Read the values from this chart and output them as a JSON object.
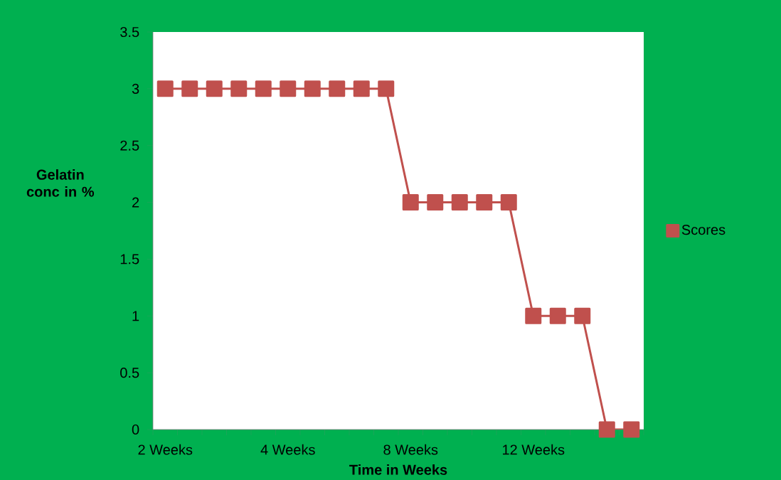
{
  "chart_data": {
    "type": "line",
    "xlabel": "Time in Weeks",
    "ylabel": "Gelatin conc in %",
    "categories": [
      "2 Weeks",
      null,
      null,
      null,
      null,
      "4 Weeks",
      null,
      null,
      null,
      null,
      "8 Weeks",
      null,
      null,
      null,
      null,
      "12 Weeks",
      null,
      null,
      null,
      null
    ],
    "series": [
      {
        "name": "Scores",
        "color": "#c0504d",
        "values": [
          3,
          3,
          3,
          3,
          3,
          3,
          3,
          3,
          3,
          3,
          2,
          2,
          2,
          2,
          2,
          1,
          1,
          1,
          0,
          0
        ]
      }
    ],
    "ylim": [
      0,
      3.5
    ],
    "yticks": [
      0,
      0.5,
      1,
      1.5,
      2,
      2.5,
      3,
      3.5
    ],
    "legend": "right",
    "marker": "square"
  }
}
